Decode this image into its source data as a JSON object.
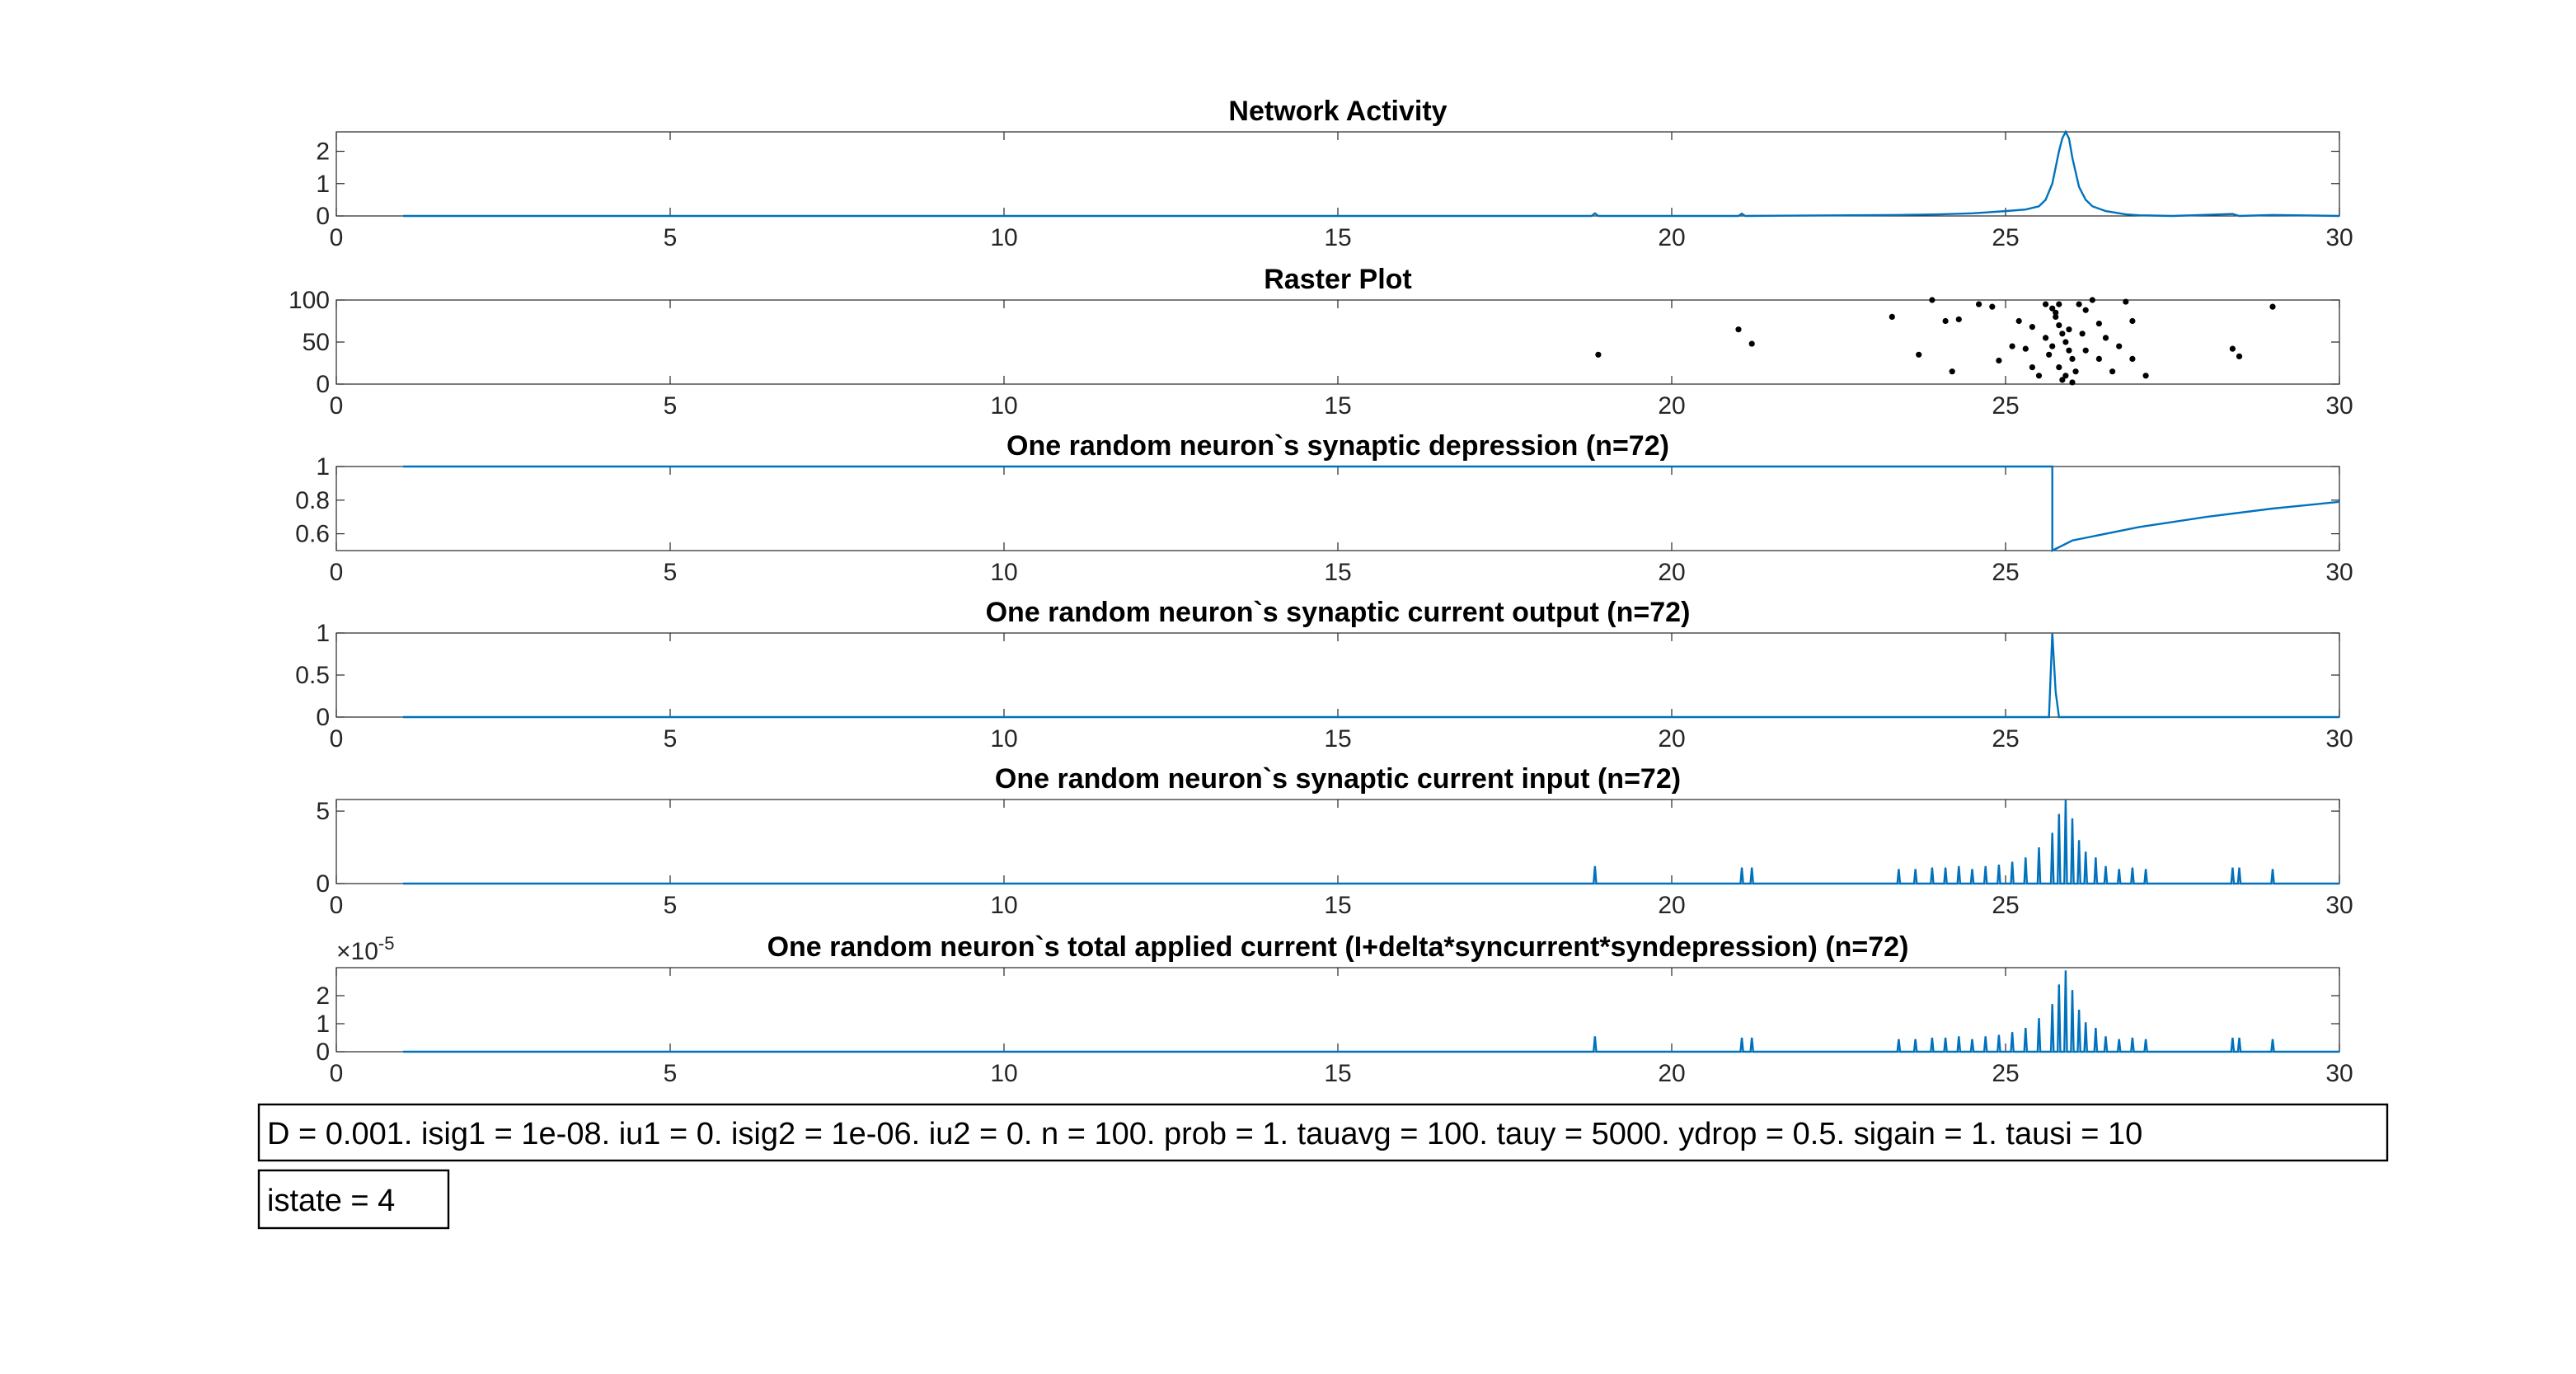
{
  "chart_data": [
    {
      "type": "line",
      "title": "Network Activity",
      "color": "#0072bd",
      "x": [
        1,
        18.8,
        18.85,
        18.9,
        21,
        21.05,
        21.1,
        23.4,
        24,
        24.5,
        25,
        25.3,
        25.5,
        25.6,
        25.7,
        25.8,
        25.85,
        25.9,
        25.95,
        26,
        26.1,
        26.2,
        26.3,
        26.5,
        26.8,
        27,
        27.5,
        28.4,
        28.5,
        29,
        30
      ],
      "values": [
        0,
        0,
        0.08,
        0,
        0,
        0.07,
        0,
        0.03,
        0.05,
        0.08,
        0.15,
        0.2,
        0.3,
        0.5,
        1.0,
        2.0,
        2.4,
        2.6,
        2.4,
        1.8,
        0.9,
        0.5,
        0.3,
        0.15,
        0.05,
        0.02,
        0,
        0.06,
        0,
        0.03,
        0
      ],
      "xlim": [
        0,
        30
      ],
      "xticks": [
        0,
        5,
        10,
        15,
        20,
        25,
        30
      ],
      "ylim": [
        0,
        2.6
      ],
      "yticks": [
        0,
        1,
        2
      ]
    },
    {
      "type": "scatter",
      "title": "Raster Plot",
      "color": "#000000",
      "x": [
        18.9,
        21,
        21.2,
        23.3,
        23.9,
        24.1,
        24.3,
        23.7,
        24.2,
        24.6,
        24.8,
        24.9,
        25.1,
        25.3,
        25.4,
        25.5,
        25.6,
        25.7,
        25.75,
        25.8,
        25.85,
        25.9,
        25.95,
        26,
        25.8,
        25.9,
        25.85,
        26,
        25.75,
        25.95,
        26.1,
        26.2,
        26.3,
        26.4,
        26.5,
        26.2,
        26.4,
        26.6,
        27.1,
        26.8,
        26.9,
        28.4,
        28.5,
        29,
        25.6,
        25.7,
        25.65,
        25.8,
        26.05,
        26.15,
        25.2,
        25.4,
        26.7,
        26.9
      ],
      "values": [
        35,
        65,
        48,
        80,
        100,
        75,
        77,
        35,
        15,
        95,
        92,
        28,
        45,
        42,
        20,
        10,
        95,
        90,
        80,
        70,
        60,
        50,
        40,
        30,
        20,
        10,
        5,
        2,
        85,
        65,
        95,
        88,
        100,
        72,
        55,
        40,
        30,
        15,
        10,
        98,
        75,
        42,
        33,
        92,
        55,
        45,
        35,
        95,
        15,
        60,
        75,
        68,
        45,
        30
      ],
      "xlim": [
        0,
        30
      ],
      "xticks": [
        0,
        5,
        10,
        15,
        20,
        25,
        30
      ],
      "ylim": [
        0,
        100
      ],
      "yticks": [
        0,
        50,
        100
      ]
    },
    {
      "type": "line",
      "title": "One random neuron`s synaptic depression (n=72)",
      "color": "#0072bd",
      "x": [
        1,
        25.7,
        25.7,
        26,
        27,
        28,
        29,
        30
      ],
      "values": [
        1,
        1,
        0.5,
        0.56,
        0.64,
        0.7,
        0.75,
        0.79
      ],
      "xlim": [
        0,
        30
      ],
      "xticks": [
        0,
        5,
        10,
        15,
        20,
        25,
        30
      ],
      "ylim": [
        0.5,
        1
      ],
      "yticks": [
        0.6,
        0.8,
        1
      ]
    },
    {
      "type": "line",
      "title": "One random neuron`s synaptic current output (n=72)",
      "color": "#0072bd",
      "x": [
        1,
        25.65,
        25.7,
        25.75,
        25.8,
        30
      ],
      "values": [
        0,
        0,
        1,
        0.3,
        0,
        0
      ],
      "xlim": [
        0,
        30
      ],
      "xticks": [
        0,
        5,
        10,
        15,
        20,
        25,
        30
      ],
      "ylim": [
        0,
        1
      ],
      "yticks": [
        0,
        0.5,
        1
      ]
    },
    {
      "type": "line",
      "title": "One random neuron`s synaptic current input (n=72)",
      "color": "#0072bd",
      "x": [
        1,
        18.83,
        18.85,
        18.87,
        21.03,
        21.05,
        21.07,
        21.18,
        21.2,
        21.22,
        23.38,
        23.4,
        23.42,
        23.63,
        23.65,
        23.67,
        23.88,
        23.9,
        23.92,
        24.08,
        24.1,
        24.12,
        24.28,
        24.3,
        24.32,
        24.48,
        24.5,
        24.52,
        24.68,
        24.7,
        24.72,
        24.88,
        24.9,
        24.92,
        25.08,
        25.1,
        25.12,
        25.28,
        25.3,
        25.32,
        25.48,
        25.5,
        25.52,
        25.68,
        25.7,
        25.72,
        25.78,
        25.8,
        25.82,
        25.88,
        25.9,
        25.92,
        25.98,
        26,
        26.02,
        26.08,
        26.1,
        26.12,
        26.18,
        26.2,
        26.22,
        26.33,
        26.35,
        26.37,
        26.48,
        26.5,
        26.52,
        26.68,
        26.7,
        26.72,
        26.88,
        26.9,
        26.92,
        27.08,
        27.1,
        27.12,
        28.38,
        28.4,
        28.42,
        28.48,
        28.5,
        28.52,
        28.98,
        29,
        29.02,
        30
      ],
      "values": [
        0,
        0,
        1.2,
        0,
        0,
        1.1,
        0,
        0,
        1.1,
        0,
        0,
        1,
        0,
        0,
        1,
        0,
        0,
        1.1,
        0,
        0,
        1.1,
        0,
        0,
        1.2,
        0,
        0,
        1,
        0,
        0,
        1.2,
        0,
        0,
        1.3,
        0,
        0,
        1.5,
        0,
        0,
        1.8,
        0,
        0,
        2.5,
        0,
        0,
        3.5,
        0,
        0,
        4.8,
        0,
        0,
        5.8,
        0,
        0,
        4.5,
        0,
        0,
        3,
        0,
        0,
        2.2,
        0,
        0,
        1.8,
        0,
        0,
        1.2,
        0,
        0,
        1,
        0,
        0,
        1.1,
        0,
        0,
        1,
        0,
        0,
        1.1,
        0,
        0,
        1.1,
        0,
        0,
        1,
        0,
        0
      ],
      "xlim": [
        0,
        30
      ],
      "xticks": [
        0,
        5,
        10,
        15,
        20,
        25,
        30
      ],
      "ylim": [
        0,
        5.8
      ],
      "yticks": [
        0,
        5
      ]
    },
    {
      "type": "line",
      "title": "One random neuron`s total applied current (I+delta*syncurrent*syndepression) (n=72)",
      "color": "#0072bd",
      "x": [
        1,
        18.83,
        18.85,
        18.87,
        21.03,
        21.05,
        21.07,
        21.18,
        21.2,
        21.22,
        23.38,
        23.4,
        23.42,
        23.63,
        23.65,
        23.67,
        23.88,
        23.9,
        23.92,
        24.08,
        24.1,
        24.12,
        24.28,
        24.3,
        24.32,
        24.48,
        24.5,
        24.52,
        24.68,
        24.7,
        24.72,
        24.88,
        24.9,
        24.92,
        25.08,
        25.1,
        25.12,
        25.28,
        25.3,
        25.32,
        25.48,
        25.5,
        25.52,
        25.68,
        25.7,
        25.72,
        25.78,
        25.8,
        25.82,
        25.88,
        25.9,
        25.92,
        25.98,
        26,
        26.02,
        26.08,
        26.1,
        26.12,
        26.18,
        26.2,
        26.22,
        26.33,
        26.35,
        26.37,
        26.48,
        26.5,
        26.52,
        26.68,
        26.7,
        26.72,
        26.88,
        26.9,
        26.92,
        27.08,
        27.1,
        27.12,
        28.38,
        28.4,
        28.42,
        28.48,
        28.5,
        28.52,
        28.98,
        29,
        29.02,
        30
      ],
      "values": [
        0,
        0,
        5.5e-06,
        0,
        0,
        5e-06,
        0,
        0,
        5e-06,
        0,
        0,
        4.5e-06,
        0,
        0,
        4.5e-06,
        0,
        0,
        5e-06,
        0,
        0,
        5e-06,
        0,
        0,
        5.5e-06,
        0,
        0,
        4.5e-06,
        0,
        0,
        5.5e-06,
        0,
        0,
        6e-06,
        0,
        0,
        7e-06,
        0,
        0,
        8.5e-06,
        0,
        0,
        1.2e-05,
        0,
        0,
        1.7e-05,
        0,
        0,
        2.4e-05,
        0,
        0,
        2.9e-05,
        0,
        0,
        2.2e-05,
        0,
        0,
        1.5e-05,
        0,
        0,
        1.05e-05,
        0,
        0,
        8.5e-06,
        0,
        0,
        5.5e-06,
        0,
        0,
        4.5e-06,
        0,
        0,
        5e-06,
        0,
        0,
        4.5e-06,
        0,
        0,
        5e-06,
        0,
        0,
        5e-06,
        0,
        0,
        4.5e-06,
        0,
        0
      ],
      "xlim": [
        0,
        30
      ],
      "xticks": [
        0,
        5,
        10,
        15,
        20,
        25,
        30
      ],
      "ylim": [
        0,
        3e-05
      ],
      "yticks": [
        0,
        {
          "value": 1e-05,
          "label": "1"
        },
        {
          "value": 2e-05,
          "label": "2"
        }
      ],
      "y_multiplier": {
        "base": "×10",
        "exponent": "-5"
      }
    }
  ],
  "annotations": [
    "D = 0.001. isig1 = 1e-08. iu1 = 0. isig2 = 1e-06. iu2 = 0. n = 100. prob = 1. tauavg = 100. tauy = 5000. ydrop = 0.5. sigain = 1. tausi = 10",
    "istate = 4"
  ]
}
